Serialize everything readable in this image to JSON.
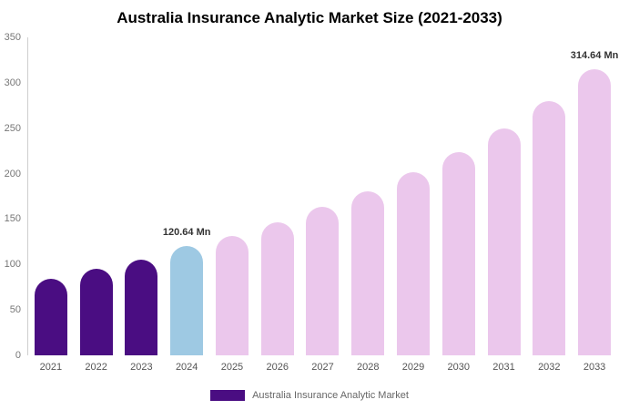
{
  "title": "Australia Insurance Analytic Market Size (2021-2033)",
  "legend": {
    "label": "Australia Insurance Analytic Market",
    "color": "#4a0d82"
  },
  "chart_data": {
    "type": "bar",
    "title": "Australia Insurance Analytic Market Size (2021-2033)",
    "xlabel": "",
    "ylabel": "",
    "categories": [
      "2021",
      "2022",
      "2023",
      "2024",
      "2025",
      "2026",
      "2027",
      "2028",
      "2029",
      "2030",
      "2031",
      "2032",
      "2033"
    ],
    "values": [
      84,
      95,
      105,
      120.64,
      131,
      146,
      163,
      181,
      202,
      224,
      250,
      280,
      314.64
    ],
    "unit": "Mn",
    "ylim": [
      0,
      350
    ],
    "yticks": [
      0,
      50,
      100,
      150,
      200,
      250,
      300,
      350
    ],
    "grid": "off",
    "legend_position": "bottom",
    "colors": {
      "historical": "#4a0d82",
      "current": "#9ec9e3",
      "forecast": "#ebc7ec"
    },
    "bar_color_keys": [
      "historical",
      "historical",
      "historical",
      "current",
      "forecast",
      "forecast",
      "forecast",
      "forecast",
      "forecast",
      "forecast",
      "forecast",
      "forecast",
      "forecast"
    ],
    "annotations": [
      {
        "index": 3,
        "text": "120.64 Mn"
      },
      {
        "index": 12,
        "text": "314.64 Mn"
      }
    ]
  }
}
